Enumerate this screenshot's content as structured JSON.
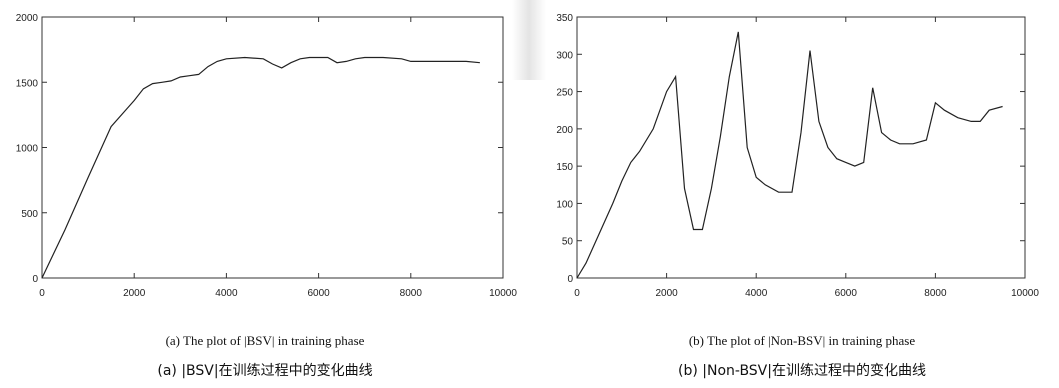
{
  "chart_data": [
    {
      "type": "line",
      "xlim": [
        0,
        10000
      ],
      "ylim": [
        0,
        2000
      ],
      "x_ticks": [
        0,
        2000,
        4000,
        6000,
        8000,
        10000
      ],
      "y_ticks": [
        0,
        500,
        1000,
        1500,
        2000
      ],
      "x_tick_labels": [
        "0",
        "2000",
        "4000",
        "6000",
        "8000",
        "10000"
      ],
      "y_tick_labels": [
        "0",
        "500",
        "1000",
        "1500",
        "2000"
      ],
      "grid": false,
      "series": [
        {
          "color": "#222222",
          "x": [
            0,
            500,
            1000,
            1500,
            2000,
            2200,
            2400,
            2600,
            2800,
            3000,
            3200,
            3400,
            3600,
            3800,
            4000,
            4400,
            4800,
            5000,
            5200,
            5400,
            5600,
            5800,
            6000,
            6200,
            6400,
            6600,
            6800,
            7000,
            7400,
            7800,
            8000,
            8400,
            8800,
            9200,
            9500
          ],
          "y": [
            0,
            370,
            770,
            1160,
            1360,
            1450,
            1490,
            1500,
            1510,
            1540,
            1550,
            1560,
            1620,
            1660,
            1680,
            1690,
            1680,
            1640,
            1610,
            1650,
            1680,
            1690,
            1690,
            1690,
            1650,
            1660,
            1680,
            1690,
            1690,
            1680,
            1660,
            1660,
            1660,
            1660,
            1650
          ]
        }
      ],
      "caption_en": "(a) The plot of |BSV| in training phase",
      "caption_zh": "(a) |BSV|在训练过程中的变化曲线"
    },
    {
      "type": "line",
      "xlim": [
        0,
        10000
      ],
      "ylim": [
        0,
        350
      ],
      "x_ticks": [
        0,
        2000,
        4000,
        6000,
        8000,
        10000
      ],
      "y_ticks": [
        0,
        50,
        100,
        150,
        200,
        250,
        300,
        350
      ],
      "x_tick_labels": [
        "0",
        "2000",
        "4000",
        "6000",
        "8000",
        "10000"
      ],
      "y_tick_labels": [
        "0",
        "50",
        "100",
        "150",
        "200",
        "250",
        "300",
        "350"
      ],
      "grid": false,
      "series": [
        {
          "color": "#222222",
          "x": [
            0,
            200,
            500,
            800,
            1000,
            1200,
            1400,
            1700,
            2000,
            2200,
            2400,
            2600,
            2800,
            3000,
            3200,
            3400,
            3600,
            3800,
            4000,
            4200,
            4500,
            4800,
            5000,
            5200,
            5400,
            5600,
            5800,
            6000,
            6200,
            6400,
            6600,
            6800,
            7000,
            7200,
            7500,
            7800,
            8000,
            8200,
            8500,
            8800,
            9000,
            9200,
            9500
          ],
          "y": [
            0,
            20,
            60,
            100,
            130,
            155,
            170,
            200,
            250,
            270,
            120,
            65,
            65,
            120,
            190,
            270,
            330,
            175,
            135,
            125,
            115,
            115,
            195,
            305,
            210,
            175,
            160,
            155,
            150,
            155,
            255,
            195,
            185,
            180,
            180,
            185,
            235,
            225,
            215,
            210,
            210,
            225,
            230
          ]
        }
      ],
      "caption_en": "(b) The plot of |Non-BSV| in training phase",
      "caption_zh": "(b) |Non-BSV|在训练过程中的变化曲线"
    }
  ]
}
